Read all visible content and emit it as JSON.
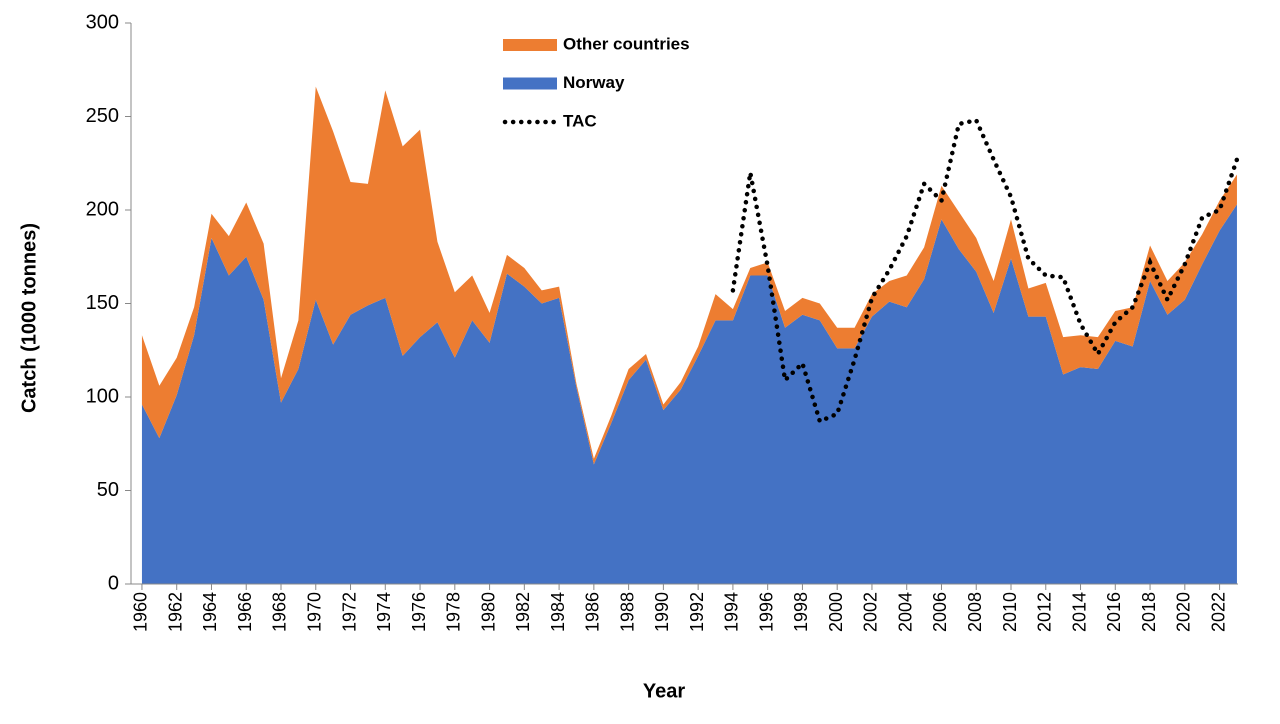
{
  "chart_data": {
    "type": "stacked-area",
    "x_label": "Year",
    "y_label": "Catch (1000 tonnes)",
    "x": [
      1960,
      1961,
      1962,
      1963,
      1964,
      1965,
      1966,
      1967,
      1968,
      1969,
      1970,
      1971,
      1972,
      1973,
      1974,
      1975,
      1976,
      1977,
      1978,
      1979,
      1980,
      1981,
      1982,
      1983,
      1984,
      1985,
      1986,
      1987,
      1988,
      1989,
      1990,
      1991,
      1992,
      1993,
      1994,
      1995,
      1996,
      1997,
      1998,
      1999,
      2000,
      2001,
      2002,
      2003,
      2004,
      2005,
      2006,
      2007,
      2008,
      2009,
      2010,
      2011,
      2012,
      2013,
      2014,
      2015,
      2016,
      2017,
      2018,
      2019,
      2020,
      2021,
      2022,
      2023
    ],
    "series": [
      {
        "name": "Other countries",
        "color": "#ed7d31",
        "kind": "area",
        "values": [
          37,
          28,
          20,
          15,
          13,
          21,
          29,
          30,
          13,
          26,
          114,
          114,
          71,
          65,
          111,
          112,
          111,
          43,
          35,
          24,
          16,
          10,
          10,
          7,
          6,
          2,
          3,
          4,
          6,
          3,
          3,
          4,
          5,
          14,
          6,
          4,
          7,
          9,
          9,
          9,
          11,
          11,
          12,
          11,
          17,
          17,
          18,
          20,
          18,
          17,
          21,
          15,
          18,
          20,
          17,
          17,
          16,
          21,
          19,
          18,
          20,
          16,
          16,
          16
        ]
      },
      {
        "name": "Norway",
        "color": "#4472c4",
        "kind": "area",
        "values": [
          96,
          78,
          101,
          133,
          185,
          165,
          175,
          152,
          97,
          115,
          152,
          128,
          144,
          149,
          153,
          122,
          132,
          140,
          121,
          141,
          129,
          166,
          159,
          150,
          153,
          105,
          64,
          86,
          109,
          120,
          93,
          104,
          122,
          141,
          141,
          165,
          165,
          137,
          144,
          141,
          126,
          126,
          143,
          151,
          148,
          163,
          195,
          179,
          167,
          145,
          174,
          143,
          143,
          112,
          116,
          115,
          130,
          127,
          162,
          144,
          152,
          171,
          189,
          203
        ]
      },
      {
        "name": "TAC",
        "color": "#000000",
        "kind": "dotted-line",
        "values": [
          null,
          null,
          null,
          null,
          null,
          null,
          null,
          null,
          null,
          null,
          null,
          null,
          null,
          null,
          null,
          null,
          null,
          null,
          null,
          null,
          null,
          null,
          null,
          null,
          null,
          null,
          null,
          null,
          null,
          null,
          null,
          null,
          null,
          null,
          157,
          220,
          170,
          109,
          118,
          87,
          91,
          120,
          153,
          168,
          186,
          214,
          205,
          246,
          248,
          227,
          207,
          174,
          165,
          164,
          139,
          123,
          140,
          148,
          172,
          152,
          171,
          196,
          200,
          227
        ]
      }
    ],
    "xlim": [
      1959.37,
      2023.06
    ],
    "xticks": [
      1960,
      1962,
      1964,
      1966,
      1968,
      1970,
      1972,
      1974,
      1976,
      1978,
      1980,
      1982,
      1984,
      1986,
      1988,
      1990,
      1992,
      1994,
      1996,
      1998,
      2000,
      2002,
      2004,
      2006,
      2008,
      2010,
      2012,
      2014,
      2016,
      2018,
      2020,
      2022
    ],
    "ylim": [
      0,
      300
    ],
    "yticks": [
      0,
      50,
      100,
      150,
      200,
      250,
      300
    ],
    "grid": false,
    "legend": "top"
  }
}
